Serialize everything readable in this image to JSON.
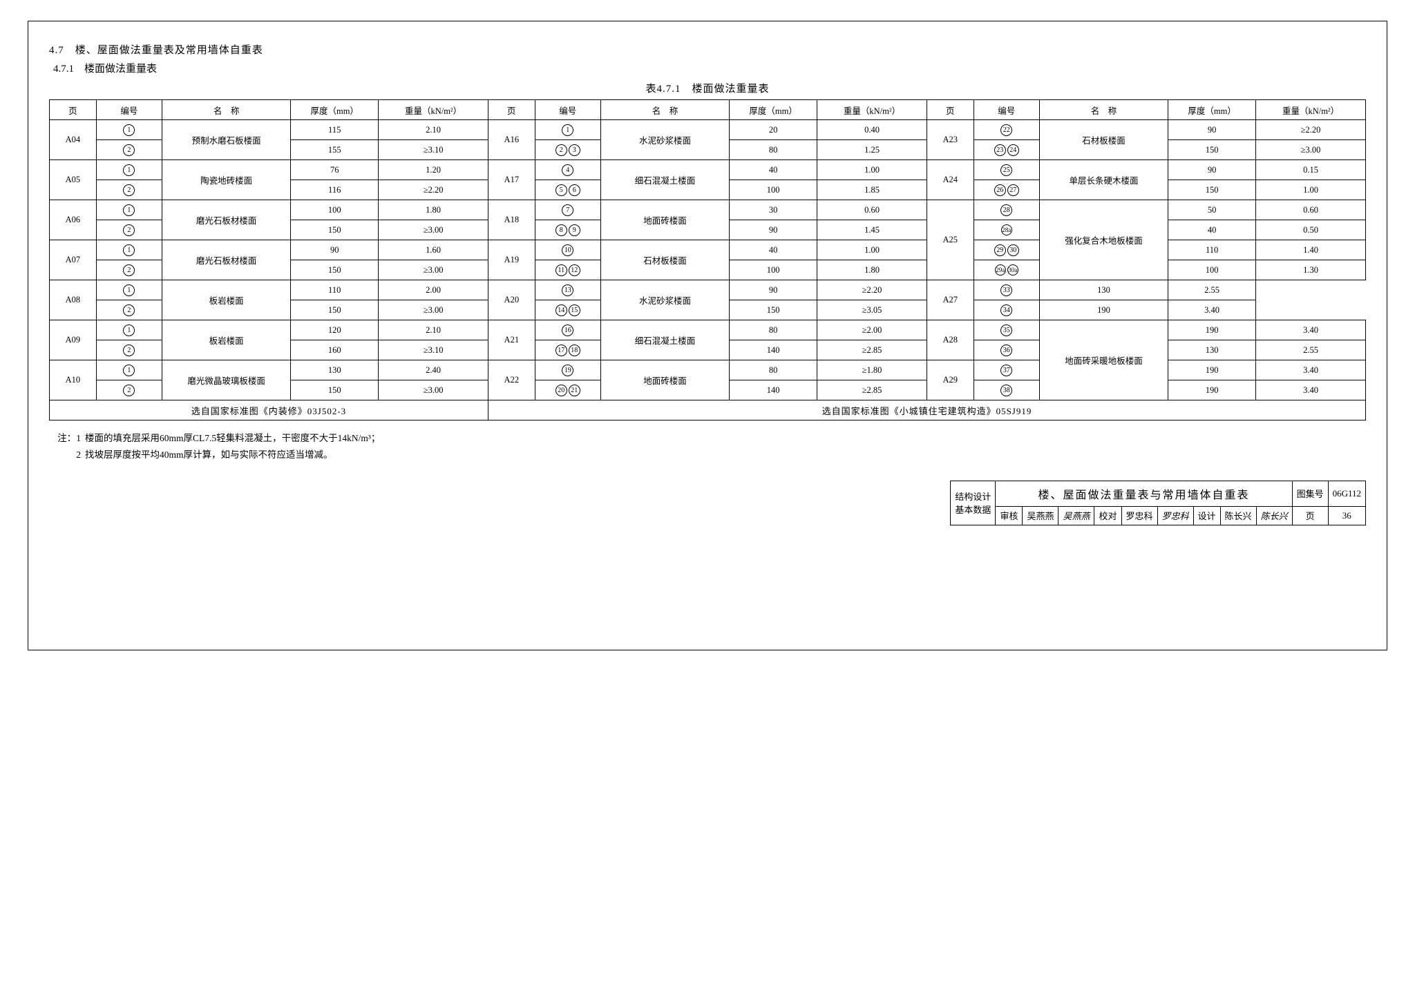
{
  "heading_main": "4.7　楼、屋面做法重量表及常用墙体自重表",
  "heading_sub": "4.7.1　楼面做法重量表",
  "table_caption": "表4.7.1　楼面做法重量表",
  "headers": {
    "page": "页",
    "id": "编号",
    "name": "名　称",
    "thk": "厚度（mm）",
    "wt": "重量（kN/m²）"
  },
  "groups": [
    {
      "page": "A04",
      "name": "预制水磨石板楼面",
      "rows": [
        {
          "ids": [
            "1"
          ],
          "thk": "115",
          "wt": "2.10"
        },
        {
          "ids": [
            "2"
          ],
          "thk": "155",
          "wt": "≥3.10"
        }
      ]
    },
    {
      "page": "A05",
      "name": "陶瓷地砖楼面",
      "rows": [
        {
          "ids": [
            "1"
          ],
          "thk": "76",
          "wt": "1.20"
        },
        {
          "ids": [
            "2"
          ],
          "thk": "116",
          "wt": "≥2.20"
        }
      ]
    },
    {
      "page": "A06",
      "name": "磨光石板材楼面",
      "rows": [
        {
          "ids": [
            "1"
          ],
          "thk": "100",
          "wt": "1.80"
        },
        {
          "ids": [
            "2"
          ],
          "thk": "150",
          "wt": "≥3.00"
        }
      ]
    },
    {
      "page": "A07",
      "name": "磨光石板材楼面",
      "rows": [
        {
          "ids": [
            "1"
          ],
          "thk": "90",
          "wt": "1.60"
        },
        {
          "ids": [
            "2"
          ],
          "thk": "150",
          "wt": "≥3.00"
        }
      ]
    },
    {
      "page": "A08",
      "name": "板岩楼面",
      "rows": [
        {
          "ids": [
            "1"
          ],
          "thk": "110",
          "wt": "2.00"
        },
        {
          "ids": [
            "2"
          ],
          "thk": "150",
          "wt": "≥3.00"
        }
      ]
    },
    {
      "page": "A09",
      "name": "板岩楼面",
      "rows": [
        {
          "ids": [
            "1"
          ],
          "thk": "120",
          "wt": "2.10"
        },
        {
          "ids": [
            "2"
          ],
          "thk": "160",
          "wt": "≥3.10"
        }
      ]
    },
    {
      "page": "A10",
      "name": "磨光微晶玻璃板楼面",
      "rows": [
        {
          "ids": [
            "1"
          ],
          "thk": "130",
          "wt": "2.40"
        },
        {
          "ids": [
            "2"
          ],
          "thk": "150",
          "wt": "≥3.00"
        }
      ]
    }
  ],
  "groups2": [
    {
      "page": "A16",
      "name": "水泥砂浆楼面",
      "rows": [
        {
          "ids": [
            "1"
          ],
          "thk": "20",
          "wt": "0.40"
        },
        {
          "ids": [
            "2",
            "3"
          ],
          "thk": "80",
          "wt": "1.25"
        }
      ]
    },
    {
      "page": "A17",
      "name": "细石混凝土楼面",
      "rows": [
        {
          "ids": [
            "4"
          ],
          "thk": "40",
          "wt": "1.00"
        },
        {
          "ids": [
            "5",
            "6"
          ],
          "thk": "100",
          "wt": "1.85"
        }
      ]
    },
    {
      "page": "A18",
      "name": "地面砖楼面",
      "rows": [
        {
          "ids": [
            "7"
          ],
          "thk": "30",
          "wt": "0.60"
        },
        {
          "ids": [
            "8",
            "9"
          ],
          "thk": "90",
          "wt": "1.45"
        }
      ]
    },
    {
      "page": "A19",
      "name": "石材板楼面",
      "rows": [
        {
          "ids": [
            "10"
          ],
          "thk": "40",
          "wt": "1.00"
        },
        {
          "ids": [
            "11",
            "12"
          ],
          "thk": "100",
          "wt": "1.80"
        }
      ]
    },
    {
      "page": "A20",
      "name": "水泥砂浆楼面",
      "rows": [
        {
          "ids": [
            "13"
          ],
          "thk": "90",
          "wt": "≥2.20"
        },
        {
          "ids": [
            "14",
            "15"
          ],
          "thk": "150",
          "wt": "≥3.05"
        }
      ]
    },
    {
      "page": "A21",
      "name": "细石混凝土楼面",
      "rows": [
        {
          "ids": [
            "16"
          ],
          "thk": "80",
          "wt": "≥2.00"
        },
        {
          "ids": [
            "17",
            "18"
          ],
          "thk": "140",
          "wt": "≥2.85"
        }
      ]
    },
    {
      "page": "A22",
      "name": "地面砖楼面",
      "rows": [
        {
          "ids": [
            "19"
          ],
          "thk": "80",
          "wt": "≥1.80"
        },
        {
          "ids": [
            "20",
            "21"
          ],
          "thk": "140",
          "wt": "≥2.85"
        }
      ]
    }
  ],
  "groups3": [
    {
      "page": "A23",
      "name": "石材板楼面",
      "rowspan": 2,
      "rows": [
        {
          "ids": [
            "22"
          ],
          "thk": "90",
          "wt": "≥2.20"
        },
        {
          "ids": [
            "23",
            "24"
          ],
          "thk": "150",
          "wt": "≥3.00"
        }
      ]
    },
    {
      "page": "A24",
      "name": "单层长条硬木楼面",
      "rowspan": 2,
      "rows": [
        {
          "ids": [
            "25"
          ],
          "thk": "90",
          "wt": "0.15"
        },
        {
          "ids": [
            "26",
            "27"
          ],
          "thk": "150",
          "wt": "1.00"
        }
      ]
    },
    {
      "page": "A25",
      "name": "强化复合木地板楼面",
      "rowspan": 4,
      "rows": [
        {
          "ids": [
            "28"
          ],
          "thk": "50",
          "wt": "0.60"
        },
        {
          "ids": [
            "28a"
          ],
          "thk": "40",
          "wt": "0.50"
        },
        {
          "ids": [
            "29",
            "30"
          ],
          "thk": "110",
          "wt": "1.40"
        },
        {
          "ids": [
            "29a",
            "30a"
          ],
          "thk": "100",
          "wt": "1.30"
        }
      ]
    },
    {
      "page": "A27",
      "name_join": true,
      "rowspan": 2,
      "rows": [
        {
          "ids": [
            "33"
          ],
          "thk": "130",
          "wt": "2.55"
        },
        {
          "ids": [
            "34"
          ],
          "thk": "190",
          "wt": "3.40"
        }
      ]
    },
    {
      "page": "A28",
      "name": "地面砖采暖地板楼面",
      "name_rowspan": 6,
      "rowspan": 2,
      "rows": [
        {
          "ids": [
            "35"
          ],
          "thk": "190",
          "wt": "3.40"
        },
        {
          "ids": [
            "36"
          ],
          "thk": "130",
          "wt": "2.55"
        }
      ]
    },
    {
      "page": "A29",
      "name_join": true,
      "rowspan": 2,
      "rows": [
        {
          "ids": [
            "37"
          ],
          "thk": "190",
          "wt": "3.40"
        },
        {
          "ids": [
            "38"
          ],
          "thk": "190",
          "wt": "3.40"
        }
      ]
    }
  ],
  "src1": "选自国家标准图《内装修》03J502-3",
  "src2": "选自国家标准图《小城镇住宅建筑构造》05SJ919",
  "notes_label": "注：",
  "notes": [
    {
      "n": "1",
      "text": "楼面的填充层采用60mm厚CL7.5轻集料混凝土，干密度不大于14kN/m³；"
    },
    {
      "n": "2",
      "text": "找坡层厚度按平均40mm厚计算，如与实际不符应适当增减。"
    }
  ],
  "titleblock": {
    "left1": "结构设计",
    "left2": "基本数据",
    "center": "楼、屋面做法重量表与常用墙体自重表",
    "set_label": "图集号",
    "set_no": "06G112",
    "page_label": "页",
    "page_no": "36",
    "review_l": "审核",
    "review_v": "吴燕燕",
    "review_s": "吴燕燕",
    "check_l": "校对",
    "check_v": "罗忠科",
    "check_s": "罗忠科",
    "design_l": "设计",
    "design_v": "陈长兴",
    "design_s": "陈长兴"
  }
}
